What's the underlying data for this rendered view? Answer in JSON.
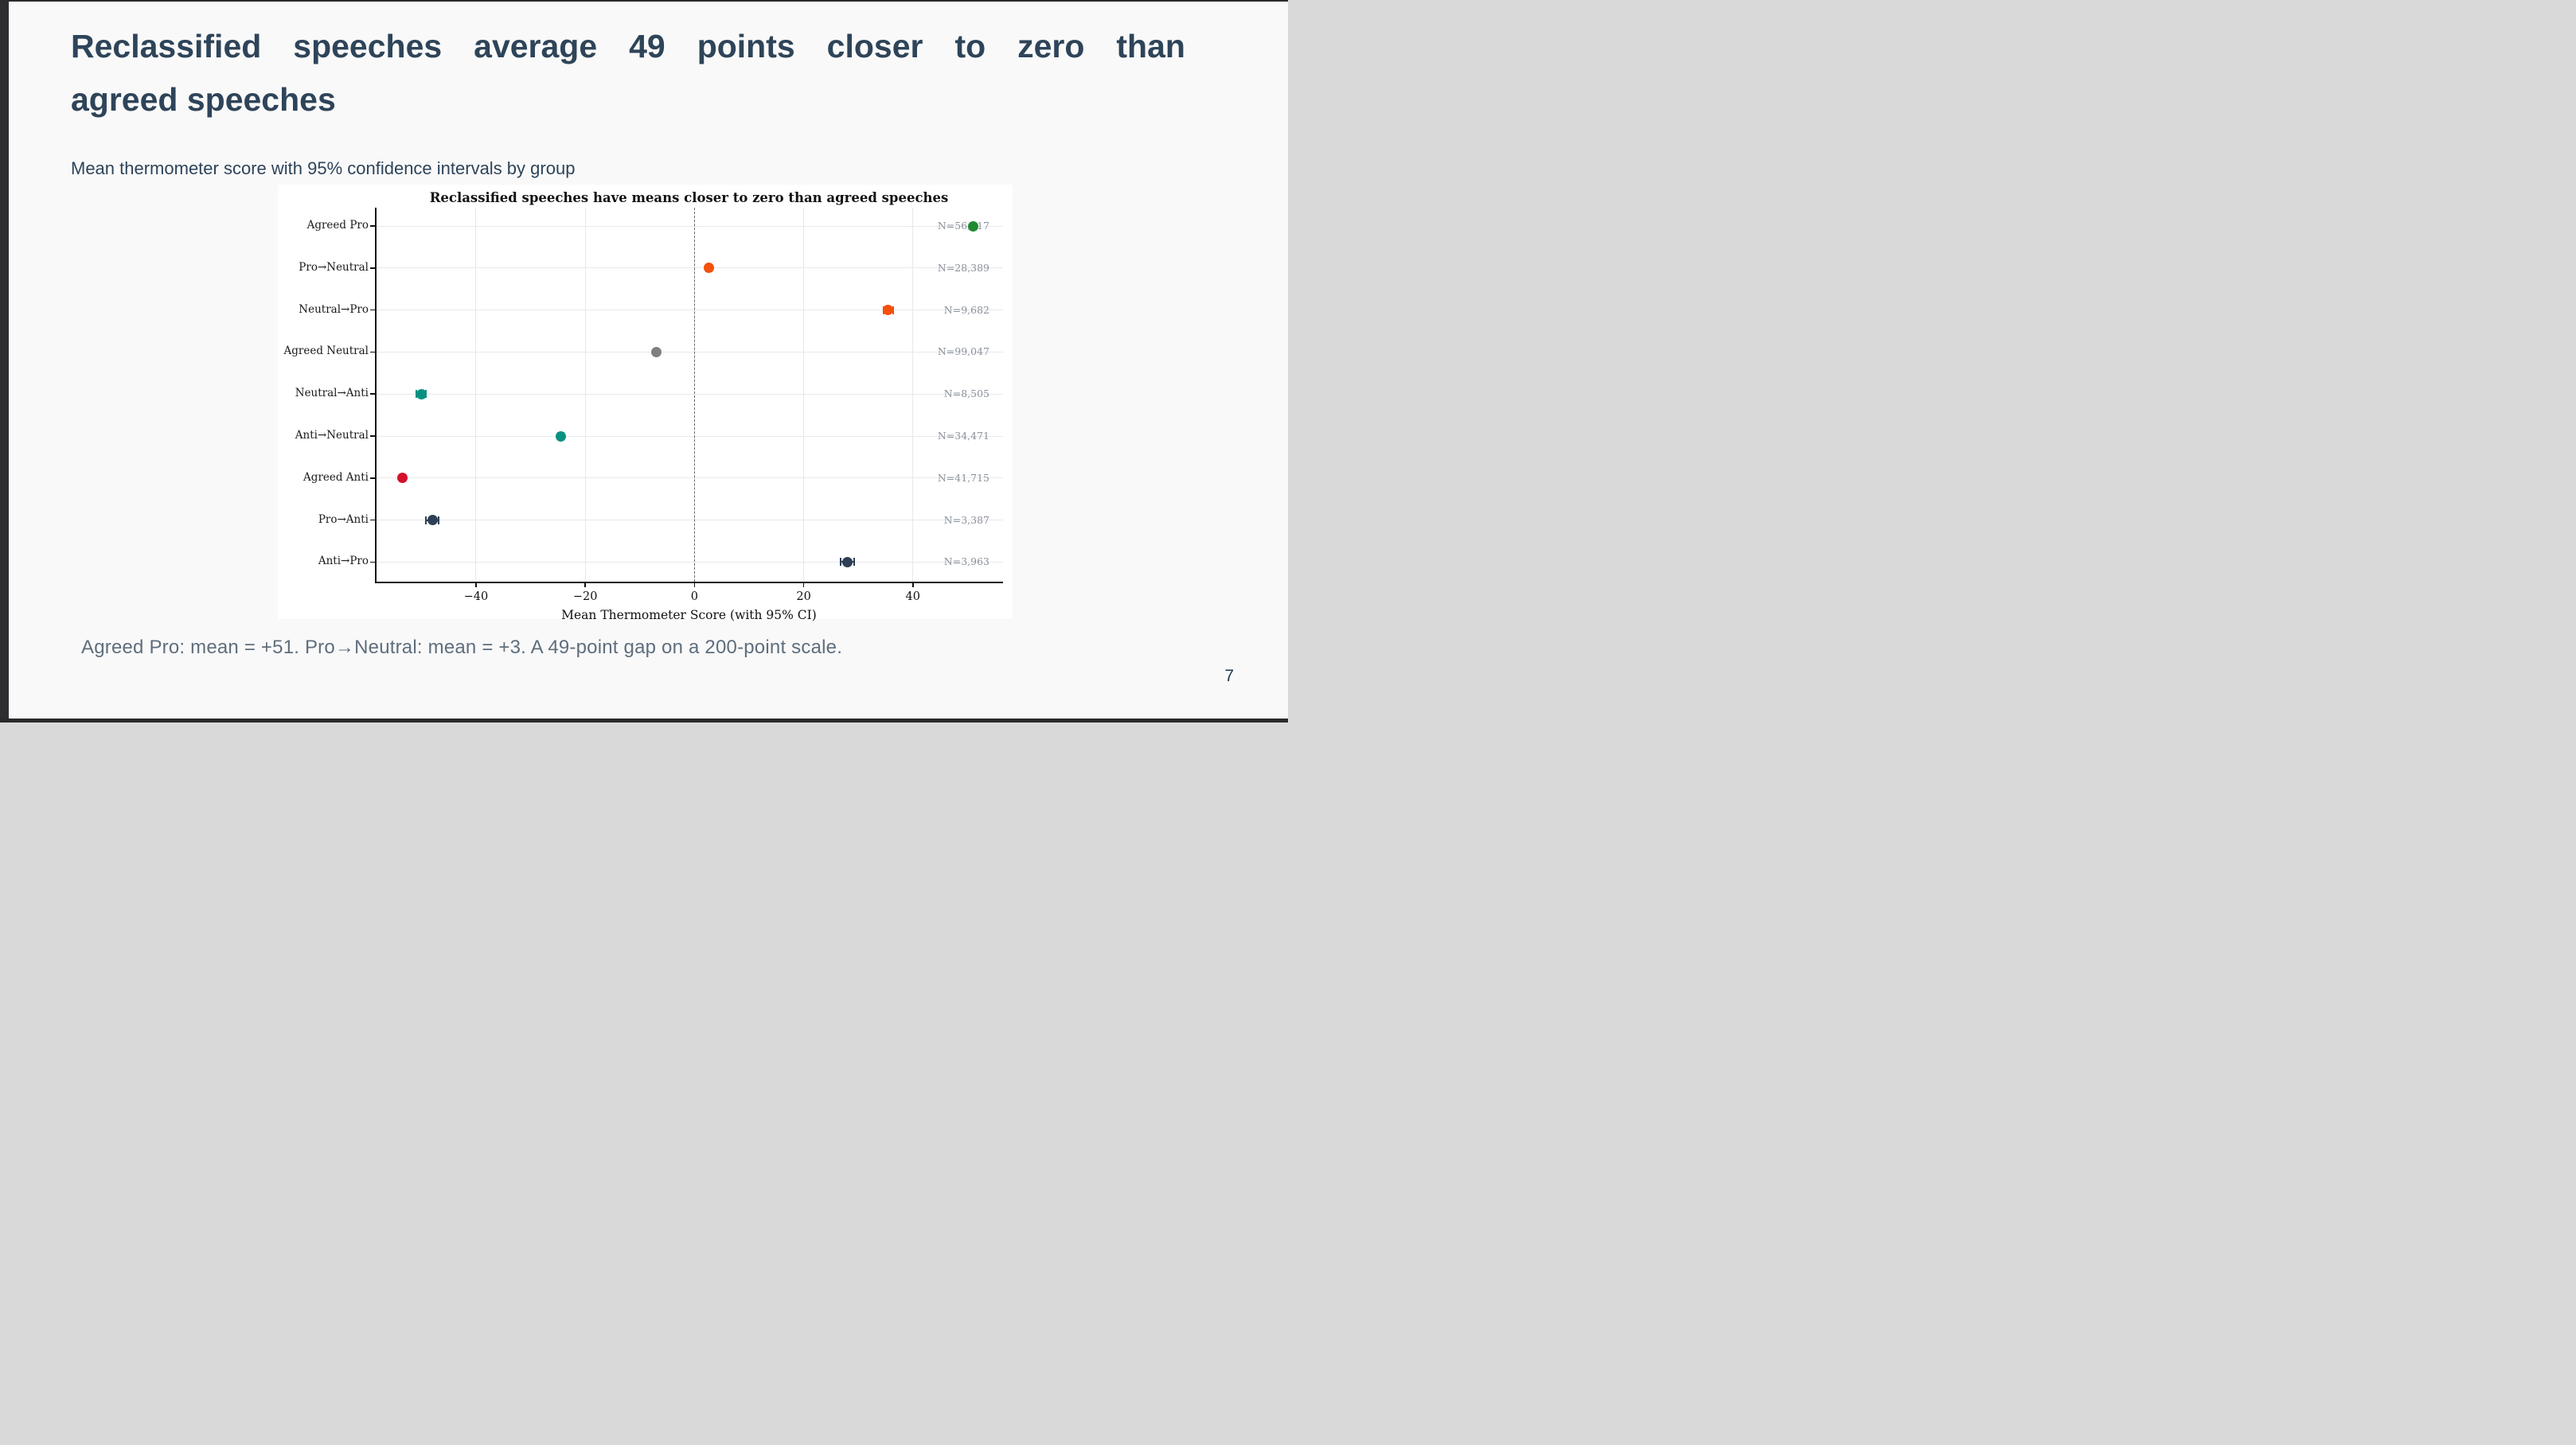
{
  "slide": {
    "title_line1": "Reclassified speeches average 49 points closer to zero than",
    "title_line2": "agreed speeches",
    "subtitle": "Mean thermometer score with 95% confidence intervals by group",
    "footnote": "Agreed Pro: mean = +51. Pro→Neutral: mean = +3. A 49-point gap on a 200-point scale.",
    "page_number": "7",
    "colors": {
      "title_text": "#2e4459",
      "footnote_text": "#5f6e7d",
      "background": "#f9f9f9",
      "edge_strip": "#2e2e30",
      "panel": "#ffffff"
    }
  },
  "chart_data": {
    "type": "scatter",
    "title": "Reclassified speeches have means closer to zero than agreed speeches",
    "xlabel": "Mean Thermometer Score (with 95% CI)",
    "ylabel": "",
    "xlim": [
      -58.5,
      56.5
    ],
    "x_ticks": [
      -40,
      -20,
      0,
      20,
      40
    ],
    "zero_reference_line": 0,
    "grid": true,
    "categories": [
      "Agreed Pro",
      "Pro→Neutral",
      "Neutral→Pro",
      "Agreed Neutral",
      "Neutral→Anti",
      "Anti→Neutral",
      "Agreed Anti",
      "Pro→Anti",
      "Anti→Pro"
    ],
    "points": [
      {
        "label": "Agreed Pro",
        "mean": 51,
        "ci_half_width": 0.3,
        "n_label": "N=56,217",
        "color": "#1e8b31"
      },
      {
        "label": "Pro→Neutral",
        "mean": 2.7,
        "ci_half_width": 0.5,
        "n_label": "N=28,389",
        "color": "#f4500a"
      },
      {
        "label": "Neutral→Pro",
        "mean": 35.5,
        "ci_half_width": 0.9,
        "n_label": "N=9,682",
        "color": "#f4500a"
      },
      {
        "label": "Agreed Neutral",
        "mean": -7,
        "ci_half_width": 0.3,
        "n_label": "N=99,047",
        "color": "#7f7f7f"
      },
      {
        "label": "Neutral→Anti",
        "mean": -50,
        "ci_half_width": 0.9,
        "n_label": "N=8,505",
        "color": "#089180"
      },
      {
        "label": "Anti→Neutral",
        "mean": -24.5,
        "ci_half_width": 0.5,
        "n_label": "N=34,471",
        "color": "#089180"
      },
      {
        "label": "Agreed Anti",
        "mean": -53.5,
        "ci_half_width": 0.4,
        "n_label": "N=41,715",
        "color": "#d5112b"
      },
      {
        "label": "Pro→Anti",
        "mean": -48,
        "ci_half_width": 1.2,
        "n_label": "N=3,387",
        "color": "#2d3f55"
      },
      {
        "label": "Anti→Pro",
        "mean": 28,
        "ci_half_width": 1.2,
        "n_label": "N=3,963",
        "color": "#2d3f55"
      }
    ]
  }
}
